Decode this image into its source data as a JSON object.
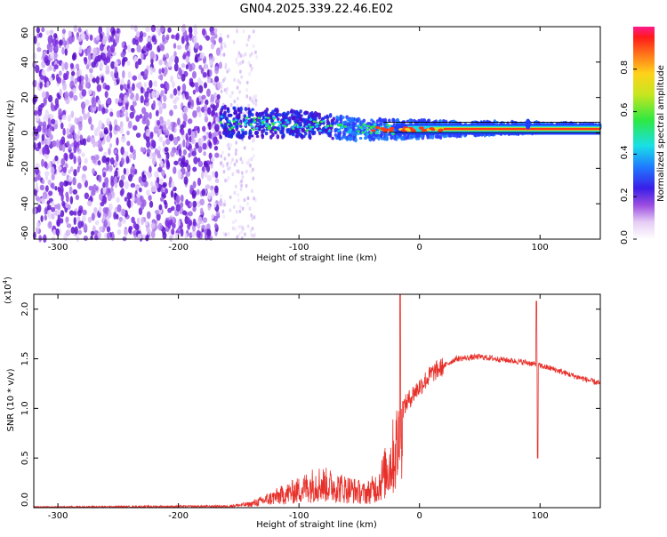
{
  "title": "GN04.2025.339.22.46.E02",
  "chart_data": [
    {
      "type": "heatmap",
      "xlabel": "Height of straight line (km)",
      "ylabel": "Frequency (Hz)",
      "xlim": [
        -320,
        150
      ],
      "ylim": [
        -60,
        60
      ],
      "xticks": [
        -300,
        -200,
        -100,
        0,
        100
      ],
      "yticks": [
        -60,
        -40,
        -20,
        0,
        20,
        40,
        60
      ],
      "colorbar": {
        "label": "Normalized spectral amplitude",
        "range": [
          0.0,
          1.0
        ],
        "ticks": [
          "0.0",
          "0.2",
          "0.4",
          "0.6",
          "0.8"
        ]
      },
      "features": {
        "noise_region_x": [
          -320,
          -165
        ],
        "signal_band_center_hz": [
          {
            "x": -165,
            "f": 6
          },
          {
            "x": -100,
            "f": 5
          },
          {
            "x": -50,
            "f": 2
          },
          {
            "x": 0,
            "f": 2
          },
          {
            "x": 90,
            "f": 3
          },
          {
            "x": 150,
            "f": 3
          }
        ]
      }
    },
    {
      "type": "line",
      "xlabel": "Height of straight line (km)",
      "ylabel": "SNR (10 * v/v)",
      "y_scale_label": "(x10",
      "y_scale_exp": "4",
      "xlim": [
        -320,
        150
      ],
      "ylim": [
        0.0,
        2.15
      ],
      "xticks": [
        -300,
        -200,
        -100,
        0,
        100
      ],
      "yticks": [
        "0.0",
        "0.5",
        "1.0",
        "1.5",
        "2.0"
      ],
      "series": [
        {
          "name": "SNR",
          "color": "#e8302a",
          "envelope": [
            {
              "x": -320,
              "y": 0.01
            },
            {
              "x": -160,
              "y": 0.02
            },
            {
              "x": -140,
              "y": 0.05
            },
            {
              "x": -120,
              "y": 0.15
            },
            {
              "x": -100,
              "y": 0.25
            },
            {
              "x": -85,
              "y": 0.35
            },
            {
              "x": -70,
              "y": 0.3
            },
            {
              "x": -55,
              "y": 0.25
            },
            {
              "x": -45,
              "y": 0.2
            },
            {
              "x": -35,
              "y": 0.3
            },
            {
              "x": -25,
              "y": 0.6
            },
            {
              "x": -18,
              "y": 0.9
            },
            {
              "x": -14,
              "y": 1.0
            },
            {
              "x": -5,
              "y": 1.15
            },
            {
              "x": 10,
              "y": 1.35
            },
            {
              "x": 30,
              "y": 1.5
            },
            {
              "x": 50,
              "y": 1.52
            },
            {
              "x": 70,
              "y": 1.49
            },
            {
              "x": 90,
              "y": 1.46
            },
            {
              "x": 110,
              "y": 1.4
            },
            {
              "x": 130,
              "y": 1.32
            },
            {
              "x": 150,
              "y": 1.25
            }
          ],
          "spikes": [
            {
              "x": -16,
              "y": 2.15
            },
            {
              "x": 97,
              "y": 2.08
            },
            {
              "x": 98,
              "y": 0.5
            }
          ]
        }
      ]
    }
  ]
}
